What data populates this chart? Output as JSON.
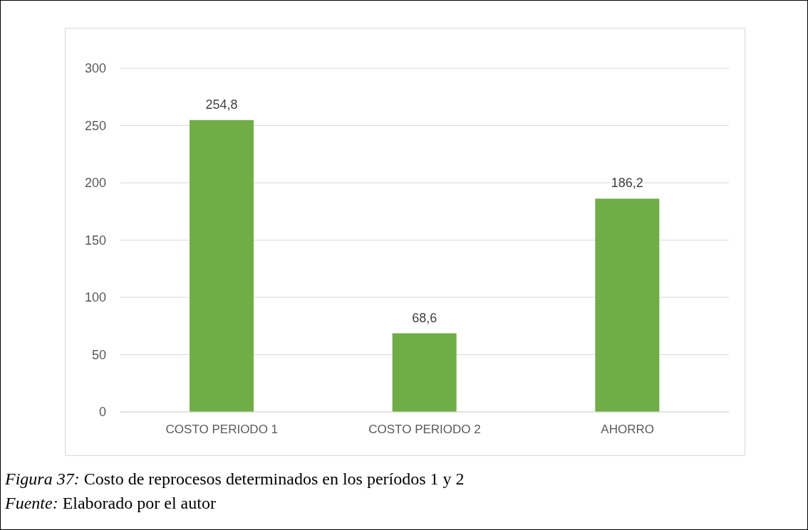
{
  "chart_data": {
    "type": "bar",
    "categories": [
      "COSTO PERIODO 1",
      "COSTO PERIODO 2",
      "AHORRO"
    ],
    "values": [
      254.8,
      68.6,
      186.2
    ],
    "value_labels": [
      "254,8",
      "68,6",
      "186,2"
    ],
    "color": "#70ad47",
    "ylim": [
      0,
      300
    ],
    "yticks": [
      0,
      50,
      100,
      150,
      200,
      250,
      300
    ],
    "grid": "y",
    "annotations": [
      "Figura 37: Costo de reprocesos determinados en los períodos 1 y 2",
      "Fuente: Elaborado por el autor"
    ]
  }
}
